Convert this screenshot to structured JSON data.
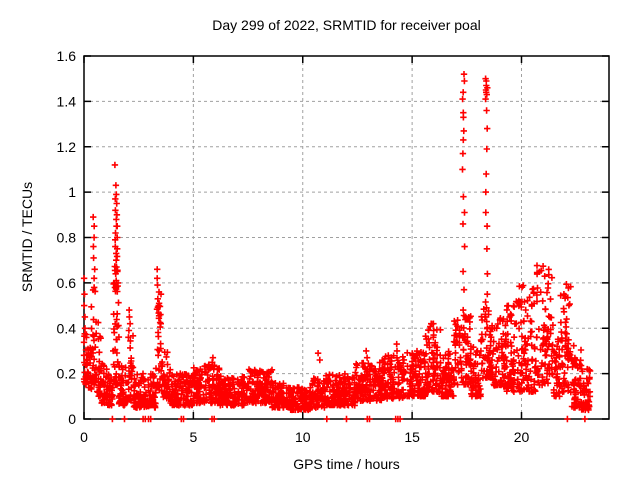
{
  "chart_data": {
    "type": "scatter",
    "title": "Day 299 of 2022, SRMTID for receiver poal",
    "xlabel": "GPS time / hours",
    "ylabel": "SRMTID / TECUs",
    "xlim": [
      0,
      24
    ],
    "ylim": [
      0,
      1.6
    ],
    "xticks": [
      0,
      5,
      10,
      15,
      20
    ],
    "xtick_labels": [
      "0",
      "5",
      "10",
      "15",
      "20"
    ],
    "yticks": [
      0,
      0.2,
      0.4,
      0.6,
      0.8,
      1.0,
      1.2,
      1.4,
      1.6
    ],
    "ytick_labels": [
      "0",
      "0.2",
      "0.4",
      "0.6",
      "0.8",
      "1",
      "1.2",
      "1.4",
      "1.6"
    ],
    "grid": true,
    "legend": "none",
    "marker": "plus",
    "marker_color": "#ff0000",
    "series_name": "SRMTID",
    "baseline_segments": [
      [
        0.0,
        0.12,
        18,
        0.15,
        0.4
      ],
      [
        0.1,
        0.35,
        30,
        0.13,
        0.33
      ],
      [
        0.32,
        0.55,
        26,
        0.15,
        0.6
      ],
      [
        0.55,
        0.8,
        28,
        0.1,
        0.45
      ],
      [
        0.8,
        1.05,
        30,
        0.07,
        0.26
      ],
      [
        1.05,
        1.32,
        32,
        0.06,
        0.2
      ],
      [
        1.32,
        1.6,
        42,
        0.15,
        0.72
      ],
      [
        1.6,
        2.02,
        48,
        0.06,
        0.24
      ],
      [
        2.02,
        2.25,
        26,
        0.08,
        0.38
      ],
      [
        2.25,
        3.28,
        115,
        0.05,
        0.2
      ],
      [
        3.28,
        3.55,
        30,
        0.12,
        0.5
      ],
      [
        3.55,
        3.95,
        45,
        0.09,
        0.3
      ],
      [
        3.95,
        5.0,
        118,
        0.06,
        0.2
      ],
      [
        5.0,
        6.2,
        135,
        0.07,
        0.24
      ],
      [
        6.2,
        7.5,
        145,
        0.06,
        0.19
      ],
      [
        7.5,
        8.6,
        125,
        0.07,
        0.22
      ],
      [
        8.6,
        9.4,
        90,
        0.05,
        0.16
      ],
      [
        9.4,
        10.4,
        110,
        0.04,
        0.14
      ],
      [
        10.4,
        11.0,
        65,
        0.05,
        0.18
      ],
      [
        11.0,
        12.4,
        155,
        0.06,
        0.2
      ],
      [
        12.4,
        13.6,
        135,
        0.08,
        0.25
      ],
      [
        13.6,
        14.6,
        115,
        0.09,
        0.28
      ],
      [
        14.6,
        15.6,
        115,
        0.1,
        0.3
      ],
      [
        15.6,
        16.3,
        80,
        0.12,
        0.42
      ],
      [
        16.3,
        16.9,
        70,
        0.1,
        0.3
      ],
      [
        16.9,
        17.7,
        95,
        0.15,
        0.46
      ],
      [
        17.7,
        18.15,
        50,
        0.1,
        0.32
      ],
      [
        18.15,
        18.7,
        65,
        0.18,
        0.52
      ],
      [
        18.7,
        19.3,
        70,
        0.14,
        0.46
      ],
      [
        19.3,
        19.8,
        58,
        0.12,
        0.52
      ],
      [
        19.8,
        20.7,
        100,
        0.12,
        0.6
      ],
      [
        20.7,
        21.45,
        85,
        0.15,
        0.68
      ],
      [
        21.45,
        21.75,
        35,
        0.1,
        0.38
      ],
      [
        21.75,
        22.25,
        58,
        0.12,
        0.6
      ],
      [
        22.25,
        22.75,
        55,
        0.05,
        0.33
      ],
      [
        22.75,
        23.2,
        42,
        0.04,
        0.22
      ]
    ],
    "spike_columns": [
      {
        "x": 0.05,
        "values": [
          0.62,
          0.55,
          0.5,
          0.45,
          0.4
        ]
      },
      {
        "x": 0.45,
        "values": [
          0.89,
          0.85,
          0.8,
          0.76,
          0.71,
          0.66,
          0.62,
          0.58
        ]
      },
      {
        "x": 1.45,
        "values": [
          1.12,
          1.03,
          0.99,
          0.97,
          0.92,
          0.88,
          0.85,
          0.82,
          0.79,
          0.76,
          0.73,
          0.7,
          0.67,
          0.64,
          0.61,
          0.58
        ]
      },
      {
        "x": 1.52,
        "values": [
          0.95,
          0.9,
          0.85,
          0.8,
          0.75,
          0.7,
          0.65,
          0.6
        ]
      },
      {
        "x": 2.08,
        "values": [
          0.48,
          0.45,
          0.42,
          0.39,
          0.36
        ]
      },
      {
        "x": 3.38,
        "values": [
          0.66,
          0.62,
          0.59,
          0.56,
          0.53,
          0.5
        ]
      },
      {
        "x": 3.48,
        "values": [
          0.55,
          0.51,
          0.46,
          0.42
        ]
      },
      {
        "x": 5.9,
        "values": [
          0.27,
          0.25
        ]
      },
      {
        "x": 10.75,
        "values": [
          0.29,
          0.26
        ]
      },
      {
        "x": 12.9,
        "values": [
          0.3,
          0.27
        ]
      },
      {
        "x": 14.3,
        "values": [
          0.33,
          0.3
        ]
      },
      {
        "x": 15.95,
        "values": [
          0.42,
          0.39,
          0.36
        ]
      },
      {
        "x": 17.35,
        "values": [
          1.52,
          1.49,
          1.44,
          1.41,
          1.35,
          1.33,
          1.27,
          1.23,
          1.17,
          1.1,
          0.98,
          0.91,
          0.86,
          0.76,
          0.65,
          0.57,
          0.48
        ]
      },
      {
        "x": 18.4,
        "values": [
          1.5,
          1.49,
          1.47,
          1.46,
          1.45,
          1.44,
          1.43,
          1.41,
          1.36,
          1.28,
          1.19,
          1.08,
          1.0,
          0.91,
          0.85,
          0.75,
          0.64,
          0.55,
          0.49
        ]
      }
    ],
    "zero_points": [
      1.3,
      1.85,
      2.7,
      2.8,
      2.95,
      3.05,
      4.45,
      4.55,
      5.85,
      5.95,
      11.1,
      12.0,
      12.95,
      13.05,
      14.25,
      14.35,
      14.45,
      22.1,
      22.9
    ]
  }
}
